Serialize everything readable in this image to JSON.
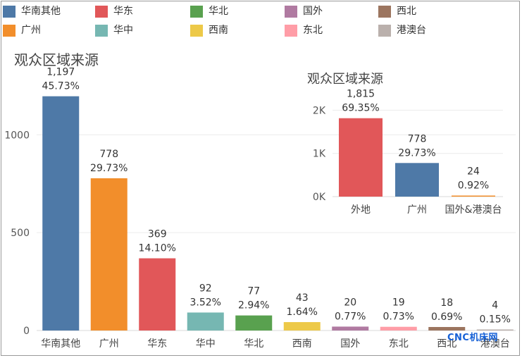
{
  "legend": [
    {
      "label": "华南其他",
      "color": "#4e79a7"
    },
    {
      "label": "华东",
      "color": "#e15759"
    },
    {
      "label": "华北",
      "color": "#59a14f"
    },
    {
      "label": "国外",
      "color": "#b07aa1"
    },
    {
      "label": "西北",
      "color": "#9c755f"
    },
    {
      "label": "广州",
      "color": "#f28e2b"
    },
    {
      "label": "华中",
      "color": "#76b7b2"
    },
    {
      "label": "西南",
      "color": "#edc948"
    },
    {
      "label": "东北",
      "color": "#ff9da7"
    },
    {
      "label": "港澳台",
      "color": "#bab0ac"
    }
  ],
  "watermark": "CNC机床网",
  "chart_data": [
    {
      "type": "bar",
      "title": "观众区域来源",
      "ylim": [
        0,
        1300
      ],
      "yticks": [
        {
          "v": 0,
          "label": "0"
        },
        {
          "v": 500,
          "label": "500"
        },
        {
          "v": 1000,
          "label": "1000"
        }
      ],
      "grid": true,
      "categories": [
        "华南其他",
        "广州",
        "华东",
        "华中",
        "华北",
        "西南",
        "国外",
        "东北",
        "西北",
        "港澳台"
      ],
      "values": [
        1197,
        778,
        369,
        92,
        77,
        43,
        20,
        19,
        18,
        4
      ],
      "value_labels": [
        "1,197",
        "778",
        "369",
        "92",
        "77",
        "43",
        "20",
        "19",
        "18",
        "4"
      ],
      "pct_labels": [
        "45.73%",
        "29.73%",
        "14.10%",
        "3.52%",
        "2.94%",
        "1.64%",
        "0.77%",
        "0.73%",
        "0.69%",
        "0.15%"
      ],
      "colors": [
        "#4e79a7",
        "#f28e2b",
        "#e15759",
        "#76b7b2",
        "#59a14f",
        "#edc948",
        "#b07aa1",
        "#ff9da7",
        "#9c755f",
        "#bab0ac"
      ]
    },
    {
      "type": "bar",
      "title": "观众区域来源",
      "ylim": [
        0,
        2300
      ],
      "yticks": [
        {
          "v": 0,
          "label": "0K"
        },
        {
          "v": 1000,
          "label": "1K"
        },
        {
          "v": 2000,
          "label": "2K"
        }
      ],
      "grid": true,
      "categories": [
        "外地",
        "广州",
        "国外&港澳台"
      ],
      "values": [
        1815,
        778,
        24
      ],
      "value_labels": [
        "1,815",
        "778",
        "24"
      ],
      "pct_labels": [
        "69.35%",
        "29.73%",
        "0.92%"
      ],
      "colors": [
        "#e15759",
        "#4e79a7",
        "#f28e2b"
      ]
    }
  ]
}
